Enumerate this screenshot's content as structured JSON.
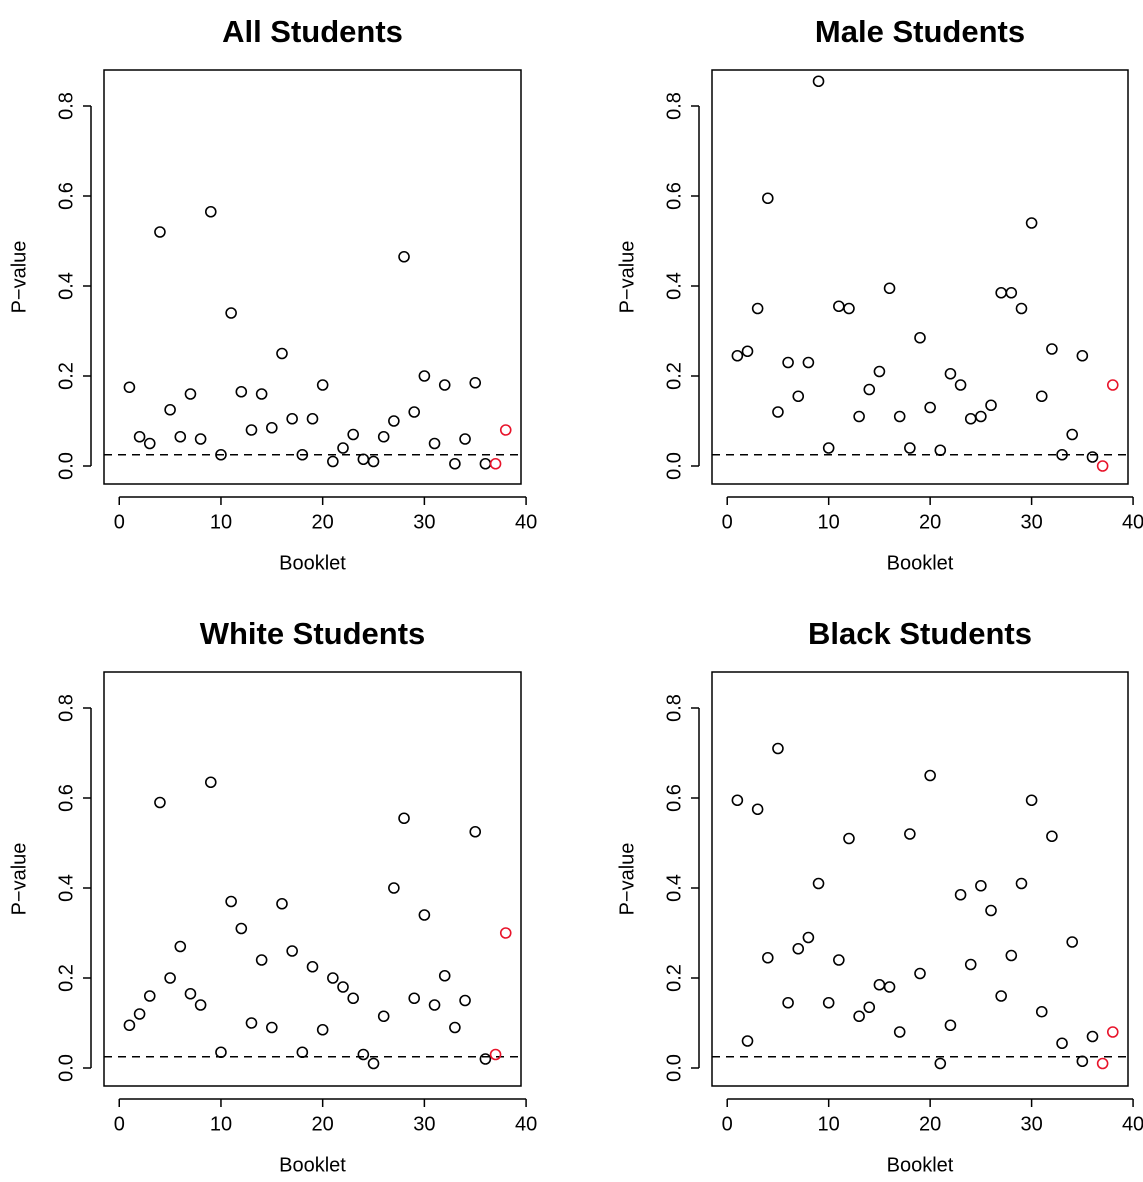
{
  "colors": {
    "normal": "#000000",
    "highlight": "#e8132a"
  },
  "chart_data": [
    {
      "type": "scatter",
      "title": "All Students",
      "xlabel": "Booklet",
      "ylabel": "P−value",
      "xlim": [
        0,
        40
      ],
      "ylim": [
        0,
        0.8
      ],
      "xticks": [
        "0",
        "10",
        "20",
        "30",
        "40"
      ],
      "yticks": [
        "0.0",
        "0.2",
        "0.4",
        "0.6",
        "0.8"
      ],
      "reference_line": 0.025,
      "highlight_points": [
        37,
        38
      ],
      "x": [
        1,
        2,
        3,
        4,
        5,
        6,
        7,
        8,
        9,
        10,
        11,
        12,
        13,
        14,
        15,
        16,
        17,
        18,
        19,
        20,
        21,
        22,
        23,
        24,
        25,
        26,
        27,
        28,
        29,
        30,
        31,
        32,
        33,
        34,
        35,
        36,
        37,
        38
      ],
      "y": [
        0.175,
        0.065,
        0.05,
        0.52,
        0.125,
        0.065,
        0.16,
        0.06,
        0.565,
        0.025,
        0.34,
        0.165,
        0.08,
        0.16,
        0.085,
        0.25,
        0.105,
        0.025,
        0.105,
        0.18,
        0.01,
        0.04,
        0.07,
        0.015,
        0.01,
        0.065,
        0.1,
        0.465,
        0.12,
        0.2,
        0.05,
        0.18,
        0.005,
        0.06,
        0.185,
        0.005,
        0.005,
        0.08
      ]
    },
    {
      "type": "scatter",
      "title": "Male Students",
      "xlabel": "Booklet",
      "ylabel": "P−value",
      "xlim": [
        0,
        40
      ],
      "ylim": [
        0,
        0.8
      ],
      "xticks": [
        "0",
        "10",
        "20",
        "30",
        "40"
      ],
      "yticks": [
        "0.0",
        "0.2",
        "0.4",
        "0.6",
        "0.8"
      ],
      "reference_line": 0.025,
      "highlight_points": [
        37,
        38
      ],
      "x": [
        1,
        2,
        3,
        4,
        5,
        6,
        7,
        8,
        9,
        10,
        11,
        12,
        13,
        14,
        15,
        16,
        17,
        18,
        19,
        20,
        21,
        22,
        23,
        24,
        25,
        26,
        27,
        28,
        29,
        30,
        31,
        32,
        33,
        34,
        35,
        36,
        37,
        38
      ],
      "y": [
        0.245,
        0.255,
        0.35,
        0.595,
        0.12,
        0.23,
        0.155,
        0.23,
        0.855,
        0.04,
        0.355,
        0.35,
        0.11,
        0.17,
        0.21,
        0.395,
        0.11,
        0.04,
        0.285,
        0.13,
        0.035,
        0.205,
        0.18,
        0.105,
        0.11,
        0.135,
        0.385,
        0.385,
        0.35,
        0.54,
        0.155,
        0.26,
        0.025,
        0.07,
        0.245,
        0.02,
        0.0,
        0.18
      ]
    },
    {
      "type": "scatter",
      "title": "White Students",
      "xlabel": "Booklet",
      "ylabel": "P−value",
      "xlim": [
        0,
        40
      ],
      "ylim": [
        0,
        0.8
      ],
      "xticks": [
        "0",
        "10",
        "20",
        "30",
        "40"
      ],
      "yticks": [
        "0.0",
        "0.2",
        "0.4",
        "0.6",
        "0.8"
      ],
      "reference_line": 0.025,
      "highlight_points": [
        37,
        38
      ],
      "x": [
        1,
        2,
        3,
        4,
        5,
        6,
        7,
        8,
        9,
        10,
        11,
        12,
        13,
        14,
        15,
        16,
        17,
        18,
        19,
        20,
        21,
        22,
        23,
        24,
        25,
        26,
        27,
        28,
        29,
        30,
        31,
        32,
        33,
        34,
        35,
        36,
        37,
        38
      ],
      "y": [
        0.095,
        0.12,
        0.16,
        0.59,
        0.2,
        0.27,
        0.165,
        0.14,
        0.635,
        0.035,
        0.37,
        0.31,
        0.1,
        0.24,
        0.09,
        0.365,
        0.26,
        0.035,
        0.225,
        0.085,
        0.2,
        0.18,
        0.155,
        0.03,
        0.01,
        0.115,
        0.4,
        0.555,
        0.155,
        0.34,
        0.14,
        0.205,
        0.09,
        0.15,
        0.525,
        0.02,
        0.03,
        0.3
      ]
    },
    {
      "type": "scatter",
      "title": "Black Students",
      "xlabel": "Booklet",
      "ylabel": "P−value",
      "xlim": [
        0,
        40
      ],
      "ylim": [
        0,
        0.8
      ],
      "xticks": [
        "0",
        "10",
        "20",
        "30",
        "40"
      ],
      "yticks": [
        "0.0",
        "0.2",
        "0.4",
        "0.6",
        "0.8"
      ],
      "reference_line": 0.025,
      "highlight_points": [
        37,
        38
      ],
      "x": [
        1,
        2,
        3,
        4,
        5,
        6,
        7,
        8,
        9,
        10,
        11,
        12,
        13,
        14,
        15,
        16,
        17,
        18,
        19,
        20,
        21,
        22,
        23,
        24,
        25,
        26,
        27,
        28,
        29,
        30,
        31,
        32,
        33,
        34,
        35,
        36,
        37,
        38
      ],
      "y": [
        0.595,
        0.06,
        0.575,
        0.245,
        0.71,
        0.145,
        0.265,
        0.29,
        0.41,
        0.145,
        0.24,
        0.51,
        0.115,
        0.135,
        0.185,
        0.18,
        0.08,
        0.52,
        0.21,
        0.65,
        0.01,
        0.095,
        0.385,
        0.23,
        0.405,
        0.35,
        0.16,
        0.25,
        0.41,
        0.595,
        0.125,
        0.515,
        0.055,
        0.28,
        0.015,
        0.07,
        0.01,
        0.08
      ]
    }
  ]
}
